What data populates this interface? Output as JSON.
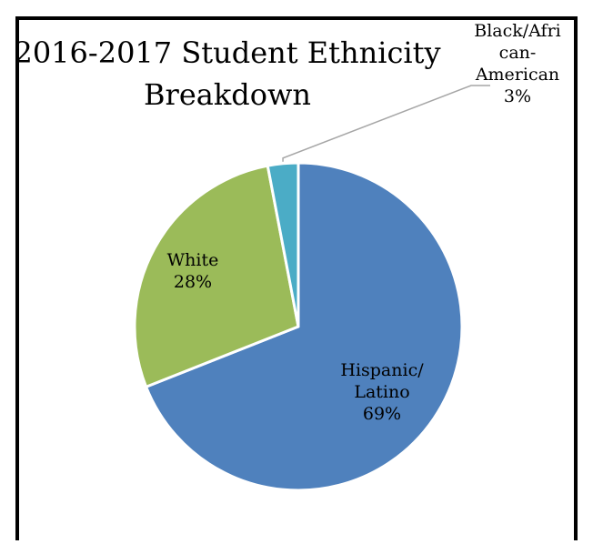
{
  "chart_data": {
    "type": "pie",
    "title_lines": [
      "2016-2017 Student Ethnicity",
      "Breakdown"
    ],
    "slices": [
      {
        "label_lines": [
          "Hispanic/",
          "Latino"
        ],
        "percent_label": "69%",
        "value": 69,
        "color": "#4F81BD"
      },
      {
        "label_lines": [
          "White"
        ],
        "percent_label": "28%",
        "value": 28,
        "color": "#9BBB59"
      },
      {
        "label_lines": [
          "Black/Afri",
          "can-",
          "American"
        ],
        "percent_label": "3%",
        "value": 3,
        "color": "#4BACC6"
      }
    ],
    "start": "12 o'clock",
    "direction": "clockwise",
    "legend": "none",
    "data_labels": "category name and percentage"
  }
}
